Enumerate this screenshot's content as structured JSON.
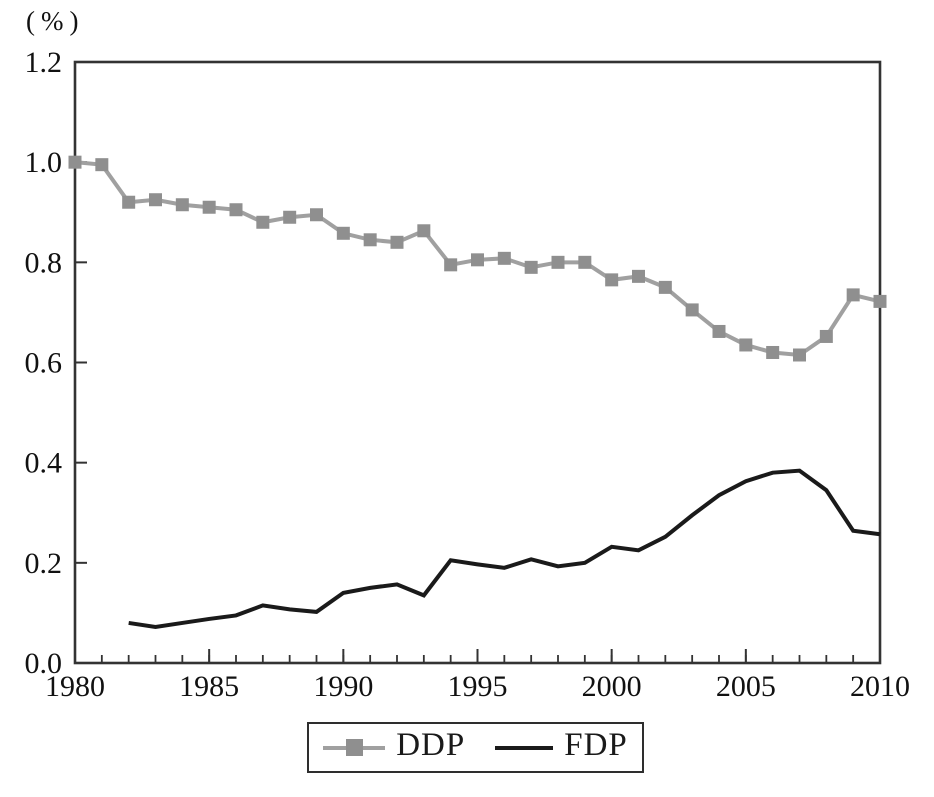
{
  "chart_data": {
    "type": "line",
    "title": "",
    "xlabel": "",
    "ylabel": "(%)",
    "xlim": [
      1980,
      2010
    ],
    "ylim": [
      0.0,
      1.2
    ],
    "yticks": [
      0.0,
      0.2,
      0.4,
      0.6,
      0.8,
      1.0,
      1.2
    ],
    "ytick_labels": [
      "0.0",
      "0.2",
      "0.4",
      "0.6",
      "0.8",
      "1.0",
      "1.2"
    ],
    "xticks": [
      1980,
      1985,
      1990,
      1995,
      2000,
      2005,
      2010
    ],
    "xtick_labels": [
      "1980",
      "1985",
      "1990",
      "1995",
      "2000",
      "2005",
      "2010"
    ],
    "minor_x_interval": 1,
    "grid": false,
    "legend_position": "bottom-center",
    "axis_color": "#333333",
    "series": [
      {
        "name": "DDP",
        "color": "#a0a0a0",
        "marker": "square",
        "marker_color": "#8f8f8f",
        "marker_size": 13,
        "line_width": 4,
        "x": [
          1980,
          1981,
          1982,
          1983,
          1984,
          1985,
          1986,
          1987,
          1988,
          1989,
          1990,
          1991,
          1992,
          1993,
          1994,
          1995,
          1996,
          1997,
          1998,
          1999,
          2000,
          2001,
          2002,
          2003,
          2004,
          2005,
          2006,
          2007,
          2008,
          2009,
          2010
        ],
        "values": [
          1.0,
          0.995,
          0.92,
          0.925,
          0.915,
          0.91,
          0.905,
          0.88,
          0.89,
          0.895,
          0.858,
          0.845,
          0.84,
          0.863,
          0.795,
          0.805,
          0.808,
          0.79,
          0.8,
          0.8,
          0.765,
          0.772,
          0.75,
          0.705,
          0.662,
          0.635,
          0.62,
          0.615,
          0.652,
          0.735,
          0.722
        ]
      },
      {
        "name": "FDP",
        "color": "#1a1a1a",
        "marker": "none",
        "marker_size": 0,
        "line_width": 4,
        "x": [
          1982,
          1983,
          1984,
          1985,
          1986,
          1987,
          1988,
          1989,
          1990,
          1991,
          1992,
          1993,
          1994,
          1995,
          1996,
          1997,
          1998,
          1999,
          2000,
          2001,
          2002,
          2003,
          2004,
          2005,
          2006,
          2007,
          2008,
          2009,
          2010
        ],
        "values": [
          0.08,
          0.072,
          0.08,
          0.088,
          0.095,
          0.115,
          0.107,
          0.102,
          0.14,
          0.15,
          0.157,
          0.135,
          0.205,
          0.197,
          0.19,
          0.207,
          0.193,
          0.2,
          0.232,
          0.225,
          0.252,
          0.295,
          0.335,
          0.363,
          0.38,
          0.384,
          0.345,
          0.264,
          0.257
        ]
      }
    ]
  }
}
